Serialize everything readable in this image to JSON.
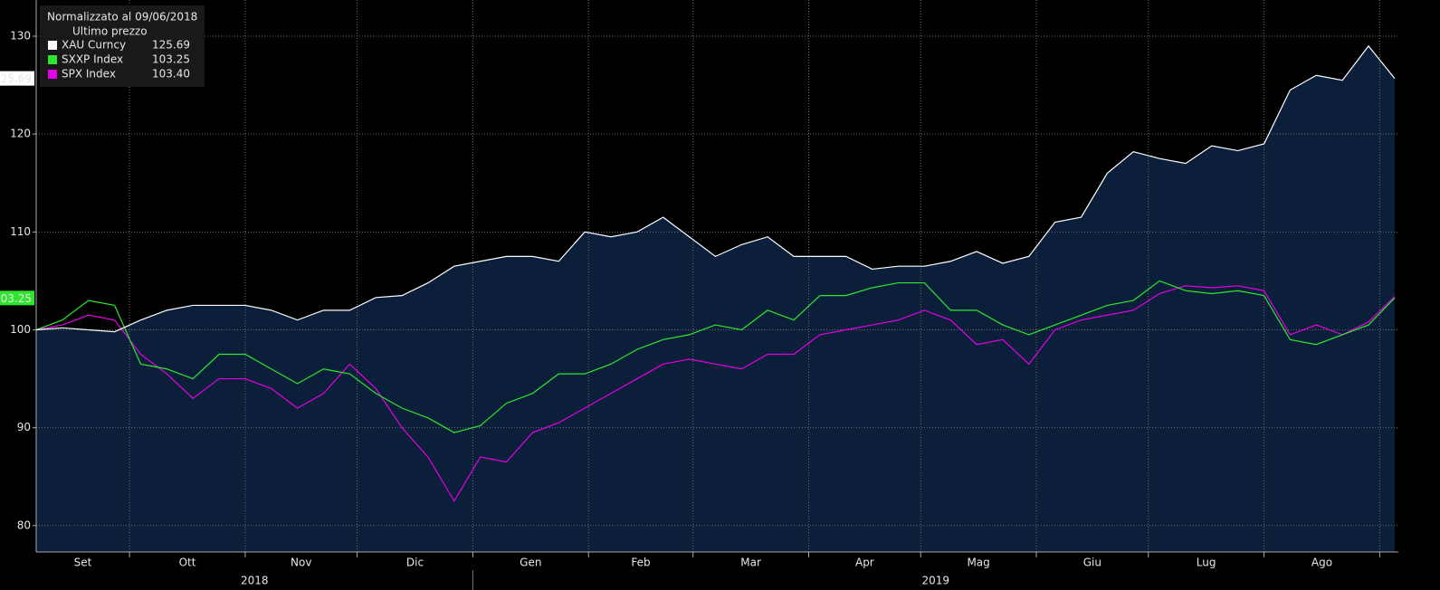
{
  "chart_data": {
    "type": "line",
    "legend_title": "Normalizzato al 09/06/2018",
    "legend_subtitle": "Ultimo prezzo",
    "x": [
      0,
      7,
      14,
      21,
      28,
      35,
      42,
      49,
      56,
      63,
      70,
      77,
      84,
      91,
      98,
      105,
      112,
      119,
      126,
      133,
      140,
      147,
      154,
      161,
      168,
      175,
      182,
      189,
      196,
      203,
      210,
      217,
      224,
      231,
      238,
      245,
      252,
      259,
      266,
      273,
      280,
      287,
      294,
      301,
      308,
      315,
      322,
      329,
      336,
      343,
      350,
      357,
      364
    ],
    "xlim": [
      0,
      365
    ],
    "xticks": [
      {
        "value": 0,
        "label": "Set"
      },
      {
        "value": 25,
        "label": "Ott"
      },
      {
        "value": 56,
        "label": "Nov"
      },
      {
        "value": 86,
        "label": "Dic"
      },
      {
        "value": 117,
        "label": "Gen"
      },
      {
        "value": 148,
        "label": "Feb"
      },
      {
        "value": 176,
        "label": "Mar"
      },
      {
        "value": 207,
        "label": "Apr"
      },
      {
        "value": 237,
        "label": "Mag"
      },
      {
        "value": 268,
        "label": "Giu"
      },
      {
        "value": 298,
        "label": "Lug"
      },
      {
        "value": 329,
        "label": "Ago"
      },
      {
        "value": 360,
        "label": ""
      }
    ],
    "years": [
      {
        "value": 0,
        "label": "2018"
      },
      {
        "value": 117,
        "label": "2019"
      }
    ],
    "ylim": [
      77.3,
      133.7
    ],
    "yticks": [
      80,
      90,
      100,
      110,
      120,
      130
    ],
    "grid": true,
    "series": [
      {
        "name": "XAU Curncy",
        "color": "#ffffff",
        "area": "#0b1f3a",
        "last_label": "125.69",
        "values": [
          100,
          100.2,
          100,
          99.8,
          101,
          102,
          102.5,
          102.5,
          102.5,
          102,
          101,
          102,
          102,
          103.3,
          103.5,
          104.8,
          106.5,
          107,
          107.5,
          107.5,
          107,
          110,
          109.5,
          110,
          111.5,
          109.5,
          107.5,
          108.7,
          109.5,
          107.5,
          107.5,
          107.5,
          106.2,
          106.5,
          106.5,
          107,
          108,
          106.8,
          107.5,
          111,
          111.5,
          116,
          118.2,
          117.5,
          117,
          118.8,
          118.3,
          119,
          124.5,
          126,
          125.5,
          129,
          125.69
        ]
      },
      {
        "name": "SXXP Index",
        "color": "#2ee62e",
        "last_label": "103.25",
        "values": [
          100,
          101,
          103,
          102.5,
          96.5,
          96,
          95,
          97.5,
          97.5,
          96,
          94.5,
          96,
          95.5,
          93.5,
          92,
          91,
          89.5,
          90.2,
          92.5,
          93.5,
          95.5,
          95.5,
          96.5,
          98,
          99,
          99.5,
          100.5,
          100,
          102,
          101,
          103.5,
          103.5,
          104.3,
          104.8,
          104.8,
          102,
          102,
          100.5,
          99.5,
          100.5,
          101.5,
          102.5,
          103,
          105,
          104,
          103.7,
          104,
          103.5,
          99,
          98.5,
          99.5,
          100.5,
          103.25
        ]
      },
      {
        "name": "SPX Index",
        "color": "#e600e6",
        "last_label": "103.40",
        "values": [
          100,
          100.5,
          101.5,
          101,
          97.5,
          95.5,
          93,
          95,
          95,
          94,
          92,
          93.5,
          96.5,
          94,
          90,
          87,
          82.5,
          87,
          86.5,
          89.5,
          90.5,
          92,
          93.5,
          95,
          96.5,
          97,
          96.5,
          96,
          97.5,
          97.5,
          99.5,
          100,
          100.5,
          101,
          102,
          101,
          98.5,
          99,
          96.5,
          100,
          101,
          101.5,
          102,
          103.7,
          104.5,
          104.3,
          104.5,
          104,
          99.5,
          100.5,
          99.5,
          100.8,
          103.4
        ]
      }
    ]
  }
}
